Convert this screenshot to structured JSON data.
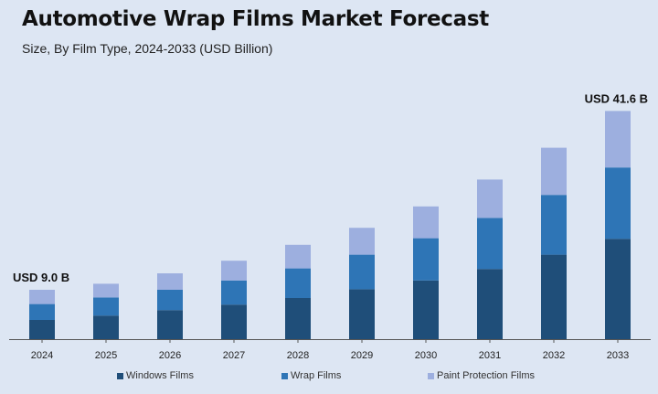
{
  "title": "Automotive Wrap Films Market Forecast",
  "subtitle": "Size, By Film Type, 2024-2033 (USD Billion)",
  "colors": {
    "background": "#dde6f3",
    "windows_films": "#1f4e79",
    "wrap_films": "#2e75b6",
    "paint_protection_films": "#9dafdf",
    "axis": "#555555"
  },
  "chart_data": {
    "type": "bar",
    "stacked": true,
    "categories": [
      "2024",
      "2025",
      "2026",
      "2027",
      "2028",
      "2029",
      "2030",
      "2031",
      "2032",
      "2033"
    ],
    "series": [
      {
        "name": "Windows Films",
        "values": [
          3.5,
          4.3,
          5.3,
          6.3,
          7.5,
          9.1,
          10.7,
          12.8,
          15.4,
          18.3
        ]
      },
      {
        "name": "Wrap Films",
        "values": [
          2.9,
          3.3,
          3.7,
          4.4,
          5.4,
          6.3,
          7.7,
          9.3,
          10.9,
          13.0
        ]
      },
      {
        "name": "Paint Protection Films",
        "values": [
          2.6,
          2.5,
          3.0,
          3.6,
          4.3,
          4.9,
          5.8,
          7.0,
          8.6,
          10.3
        ]
      }
    ],
    "annotations": [
      {
        "category": "2024",
        "text": "USD 9.0 B"
      },
      {
        "category": "2033",
        "text": "USD 41.6 B"
      }
    ],
    "grid": false,
    "legend_position": "bottom",
    "ylim": [
      0,
      42
    ]
  }
}
